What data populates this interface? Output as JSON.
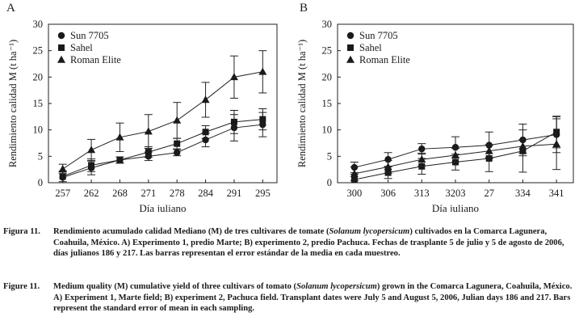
{
  "chart_data": [
    {
      "panel_label": "A",
      "type": "line",
      "categories": [
        "257",
        "262",
        "268",
        "271",
        "278",
        "284",
        "291",
        "295"
      ],
      "xlabel": "Día juliano",
      "ylabel": "Rendimiento calidad M (t ha⁻¹)",
      "ylim": [
        0,
        30
      ],
      "yticks": [
        0,
        5,
        10,
        15,
        20,
        25,
        30
      ],
      "grid": false,
      "legend_position": "top-left",
      "series": [
        {
          "name": "Sun 7705",
          "marker": "circle",
          "values": [
            1.0,
            2.8,
            4.3,
            5.0,
            5.7,
            8.1,
            10.4,
            11.0
          ],
          "errors": [
            1.0,
            1.3,
            0.6,
            0.8,
            0.6,
            1.3,
            2.5,
            2.3
          ]
        },
        {
          "name": "Sahel",
          "marker": "square",
          "values": [
            1.2,
            3.3,
            4.3,
            5.8,
            7.4,
            9.6,
            11.5,
            12.0
          ],
          "errors": [
            1.0,
            1.2,
            0.6,
            1.0,
            1.0,
            1.2,
            2.2,
            2.0
          ]
        },
        {
          "name": "Roman Elite",
          "marker": "triangle",
          "values": [
            2.6,
            6.2,
            8.6,
            9.7,
            11.8,
            15.7,
            20.0,
            21.0
          ],
          "errors": [
            0.9,
            2.0,
            2.7,
            3.2,
            3.4,
            3.3,
            4.0,
            4.0
          ]
        }
      ]
    },
    {
      "panel_label": "B",
      "type": "line",
      "categories": [
        "300",
        "306",
        "313",
        "3203",
        "27",
        "334",
        "341"
      ],
      "xlabel": "Día juliano",
      "ylabel": "Rendimiento calidad M (t ha⁻¹)",
      "ylim": [
        0,
        30
      ],
      "yticks": [
        0,
        5,
        10,
        15,
        20,
        25,
        30
      ],
      "grid": false,
      "legend_position": "top-left",
      "series": [
        {
          "name": "Sun 7705",
          "marker": "circle",
          "values": [
            2.9,
            4.4,
            6.4,
            6.7,
            7.1,
            8.1,
            9.1
          ],
          "errors": [
            1.0,
            1.3,
            1.0,
            2.0,
            2.5,
            3.0,
            3.4
          ]
        },
        {
          "name": "Sahel",
          "marker": "square",
          "values": [
            0.6,
            1.9,
            3.1,
            3.9,
            4.6,
            6.0,
            9.6
          ],
          "errors": [
            1.0,
            1.1,
            1.5,
            1.5,
            2.5,
            4.0,
            3.0
          ]
        },
        {
          "name": "Roman Elite",
          "marker": "triangle",
          "values": [
            1.7,
            3.0,
            4.4,
            5.2,
            6.0,
            6.9,
            7.3
          ],
          "errors": [
            1.3,
            1.2,
            1.2,
            1.3,
            1.2,
            1.3,
            4.8
          ]
        }
      ]
    }
  ],
  "captions": {
    "es": {
      "label": "Figura 11.",
      "text_1": "Rendimiento acumulado calidad Mediano (M) de tres cultivares de tomate (",
      "species": "Solanum lycopersicum",
      "text_2": ") cultivados en la Comarca Lagunera, Coahuila, México. A) Experimento 1, predio Marte; B) experimento 2, predio Pachuca. Fechas de trasplante 5 de julio y 5 de agosto de 2006, días julianos 186 y 217. Las barras representan el error estándar de la media en cada muestreo."
    },
    "en": {
      "label": "Figure 11.",
      "text_1": "Medium quality (M) cumulative yield of three cultivars of tomato (",
      "species": "Solanum lycopersicum",
      "text_2": ") grown in the Comarca Lagunera, Coahuila, México. A) Experiment 1, Marte field; B) experiment 2, Pachuca field. Transplant dates were July 5 and August 5, 2006, Julian days 186 and 217. Bars represent the standard error of mean in each sampling."
    }
  }
}
